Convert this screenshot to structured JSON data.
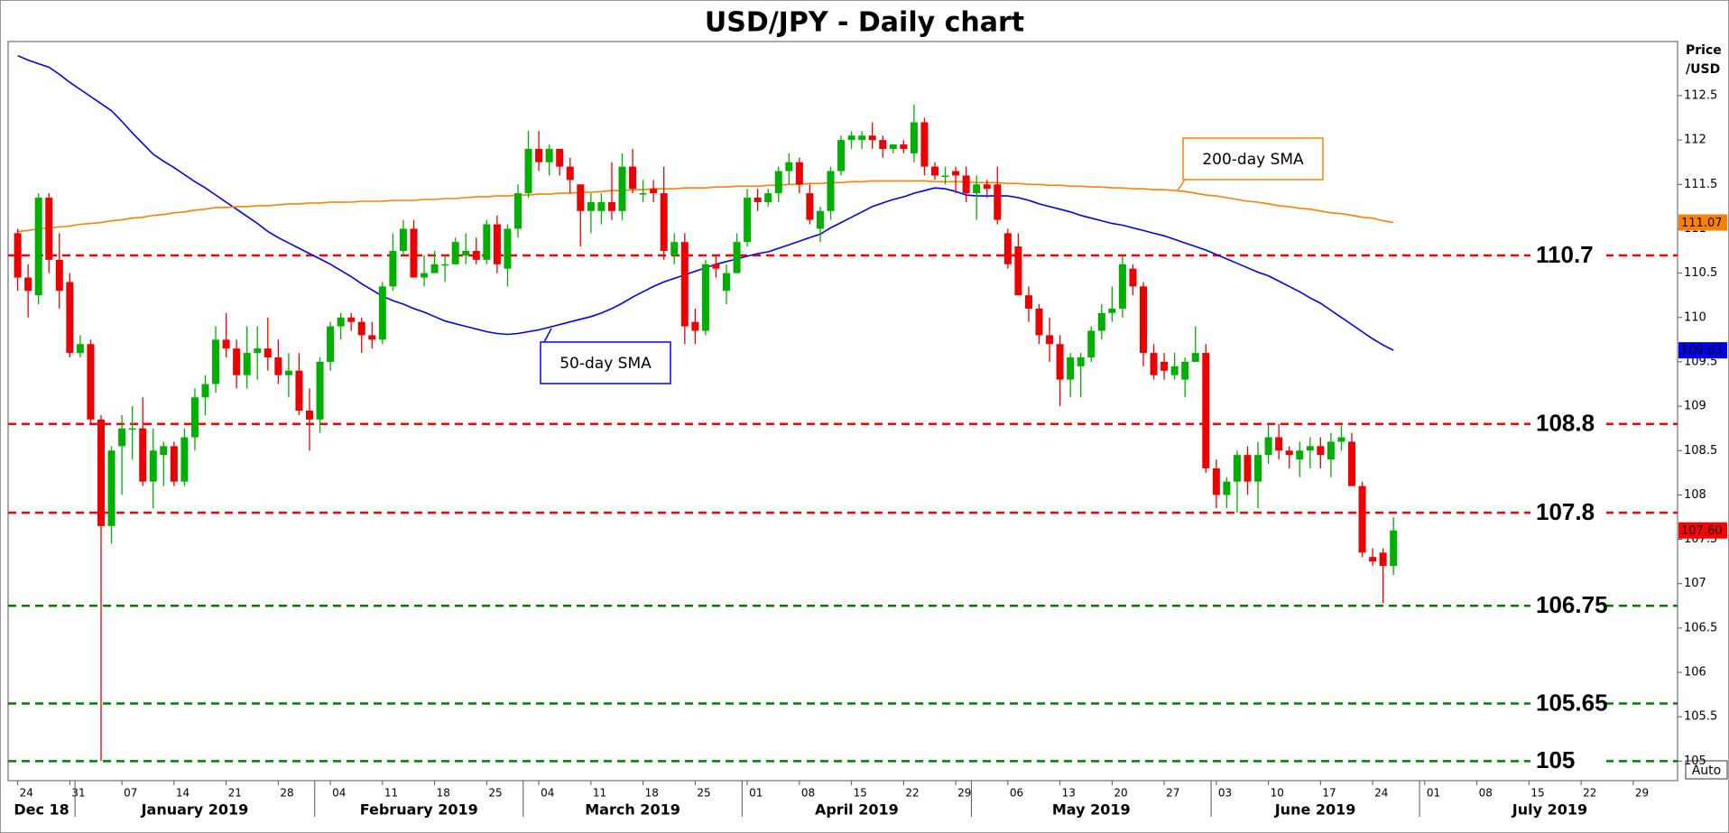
{
  "chart_data": {
    "type": "candlestick",
    "title": "USD/JPY - Daily chart",
    "y_axis_label": [
      "Price",
      "/USD"
    ],
    "button": "Auto",
    "categories": [
      "24",
      null,
      null,
      null,
      null,
      "31",
      null,
      null,
      null,
      null,
      "07",
      null,
      null,
      null,
      null,
      "14",
      null,
      null,
      null,
      null,
      "21",
      null,
      null,
      null,
      null,
      "28",
      null,
      null,
      null,
      null,
      "04",
      null,
      null,
      null,
      null,
      "11",
      null,
      null,
      null,
      null,
      "18",
      null,
      null,
      null,
      null,
      "25",
      null,
      null,
      null,
      null,
      "04",
      null,
      null,
      null,
      null,
      "11",
      null,
      null,
      null,
      null,
      "18",
      null,
      null,
      null,
      null,
      "25",
      null,
      null,
      null,
      null,
      "01",
      null,
      null,
      null,
      null,
      "08",
      null,
      null,
      null,
      null,
      "15",
      null,
      null,
      null,
      null,
      "22",
      null,
      null,
      null,
      null,
      "29",
      null,
      null,
      null,
      null,
      "06",
      null,
      null,
      null,
      null,
      "13",
      null,
      null,
      null,
      null,
      "20",
      null,
      null,
      null,
      null,
      "27",
      null,
      null,
      null,
      null,
      "03",
      null,
      null,
      null,
      null,
      "10",
      null,
      null,
      null,
      null,
      "17",
      null,
      null,
      null,
      null,
      "24",
      null,
      null,
      null,
      null,
      "01",
      null,
      null,
      null,
      null,
      "08",
      null,
      null,
      null,
      null,
      "15",
      null,
      null,
      null,
      null,
      "22",
      null,
      null,
      null,
      null,
      "29",
      null,
      null,
      null,
      null
    ],
    "month_labels": [
      "Dec 18",
      "January 2019",
      "February 2019",
      "March 2019",
      "April 2019",
      "May 2019",
      "June 2019",
      "July 2019"
    ],
    "up_color": "#00b000",
    "down_color": "#ee0000",
    "open": [
      110.95,
      110.45,
      110.25,
      111.35,
      110.65,
      110.4,
      109.6,
      109.7,
      108.85,
      107.65,
      108.55,
      108.75,
      108.75,
      108.15,
      108.45,
      108.55,
      108.15,
      108.65,
      109.1,
      109.25,
      109.75,
      109.65,
      109.35,
      109.6,
      109.65,
      109.55,
      109.35,
      109.4,
      108.95,
      108.85,
      109.5,
      109.9,
      110.0,
      109.95,
      109.8,
      109.75,
      110.35,
      110.75,
      111.0,
      110.45,
      110.5,
      110.6,
      110.6,
      110.7,
      110.75,
      110.65,
      111.05,
      110.55,
      111.0,
      111.4,
      111.9,
      111.75,
      111.9,
      111.7,
      111.5,
      111.2,
      111.2,
      111.3,
      111.2,
      111.7,
      111.4,
      111.45,
      111.4,
      110.7,
      110.85,
      109.95,
      109.85,
      110.6,
      110.3,
      110.5,
      110.85,
      111.35,
      111.3,
      111.4,
      111.65,
      111.75,
      111.4,
      111.0,
      111.2,
      111.65,
      112.0,
      112.0,
      112.05,
      112.0,
      111.9,
      111.95,
      111.85,
      112.2,
      111.7,
      111.6,
      111.65,
      111.6,
      111.4,
      111.5,
      111.5,
      110.95,
      110.8,
      110.25,
      110.1,
      109.8,
      109.7,
      109.3,
      109.45,
      109.55,
      109.85,
      110.05,
      110.1,
      110.55,
      110.35,
      109.6,
      109.5,
      109.35,
      109.3,
      109.5,
      109.6,
      108.3,
      108.0,
      108.15,
      108.45,
      108.15,
      108.45,
      108.65,
      108.5,
      108.4,
      108.5,
      108.55,
      108.4,
      108.6,
      108.6,
      108.1,
      107.3,
      107.35,
      107.2,
      null,
      null,
      null,
      null,
      null,
      null,
      null,
      null,
      null,
      null,
      null,
      null,
      null,
      null,
      null,
      null,
      null,
      null,
      null,
      null,
      null,
      null,
      null,
      null,
      null,
      null,
      null
    ],
    "high": [
      111.0,
      110.6,
      111.4,
      111.4,
      110.95,
      110.5,
      109.8,
      109.75,
      108.9,
      108.55,
      108.9,
      109.0,
      109.1,
      108.75,
      108.6,
      108.6,
      108.75,
      109.2,
      109.35,
      109.9,
      110.05,
      109.75,
      109.9,
      109.9,
      110.0,
      109.75,
      109.6,
      109.6,
      109.2,
      109.55,
      109.95,
      110.05,
      110.05,
      110.0,
      109.95,
      110.4,
      110.95,
      111.1,
      111.1,
      110.7,
      110.75,
      110.7,
      110.9,
      110.95,
      110.9,
      111.1,
      111.15,
      111.05,
      111.5,
      112.1,
      112.1,
      111.95,
      111.9,
      111.8,
      111.5,
      111.4,
      111.4,
      111.75,
      111.85,
      111.9,
      111.55,
      111.55,
      111.7,
      110.95,
      110.95,
      110.1,
      110.65,
      110.7,
      110.6,
      110.95,
      111.45,
      111.45,
      111.45,
      111.7,
      111.85,
      111.8,
      111.5,
      111.25,
      111.7,
      112.05,
      112.1,
      112.1,
      112.2,
      112.05,
      111.95,
      112.0,
      112.4,
      112.25,
      111.75,
      111.7,
      111.7,
      111.7,
      111.6,
      111.55,
      111.7,
      111.0,
      110.95,
      110.35,
      110.15,
      110.0,
      109.8,
      109.6,
      109.6,
      109.9,
      110.15,
      110.35,
      110.7,
      110.6,
      110.4,
      109.7,
      109.6,
      109.6,
      109.55,
      109.9,
      109.7,
      108.4,
      108.2,
      108.5,
      108.55,
      108.6,
      108.8,
      108.8,
      108.55,
      108.6,
      108.65,
      108.65,
      108.7,
      108.8,
      108.7,
      108.15,
      107.4,
      107.4,
      107.75,
      null,
      null,
      null,
      null,
      null,
      null,
      null,
      null,
      null,
      null,
      null,
      null,
      null,
      null,
      null,
      null,
      null,
      null,
      null,
      null,
      null,
      null,
      null,
      null,
      null,
      null,
      null
    ],
    "low": [
      110.3,
      110.0,
      110.15,
      110.5,
      110.1,
      109.55,
      109.55,
      108.8,
      105.0,
      107.45,
      108.0,
      108.4,
      108.1,
      107.85,
      108.1,
      108.1,
      108.1,
      108.5,
      108.9,
      109.15,
      109.55,
      109.2,
      109.2,
      109.3,
      109.4,
      109.25,
      109.1,
      108.9,
      108.5,
      108.7,
      109.4,
      109.75,
      109.85,
      109.6,
      109.65,
      109.7,
      110.3,
      110.7,
      110.45,
      110.35,
      110.5,
      110.4,
      110.6,
      110.6,
      110.6,
      110.6,
      110.5,
      110.35,
      110.9,
      111.35,
      111.65,
      111.6,
      111.6,
      111.4,
      110.8,
      110.95,
      111.05,
      111.1,
      111.1,
      111.4,
      111.3,
      111.3,
      110.65,
      110.6,
      109.7,
      109.7,
      109.8,
      110.45,
      110.15,
      110.5,
      110.8,
      111.2,
      111.25,
      111.3,
      111.5,
      111.4,
      111.05,
      110.85,
      111.1,
      111.6,
      111.9,
      111.9,
      111.9,
      111.8,
      111.85,
      111.85,
      111.75,
      111.6,
      111.55,
      111.5,
      111.4,
      111.3,
      111.1,
      111.35,
      111.05,
      110.55,
      110.25,
      109.95,
      109.7,
      109.5,
      109.0,
      109.1,
      109.1,
      109.5,
      109.75,
      109.95,
      110.0,
      110.25,
      109.45,
      109.3,
      109.3,
      109.3,
      109.1,
      109.5,
      108.25,
      107.85,
      107.85,
      107.8,
      108.0,
      107.85,
      108.35,
      108.4,
      108.3,
      108.2,
      108.3,
      108.3,
      108.2,
      108.5,
      108.1,
      107.3,
      107.2,
      106.78,
      107.1,
      null,
      null,
      null,
      null,
      null,
      null,
      null,
      null,
      null,
      null,
      null,
      null,
      null,
      null,
      null,
      null,
      null,
      null,
      null,
      null,
      null,
      null,
      null,
      null,
      null,
      null,
      null
    ],
    "close": [
      110.45,
      110.3,
      111.35,
      110.65,
      110.3,
      109.6,
      109.7,
      108.85,
      107.65,
      108.5,
      108.75,
      108.75,
      108.15,
      108.5,
      108.55,
      108.15,
      108.65,
      109.1,
      109.25,
      109.75,
      109.65,
      109.35,
      109.6,
      109.65,
      109.55,
      109.35,
      109.4,
      108.95,
      108.85,
      109.5,
      109.9,
      110.0,
      109.95,
      109.8,
      109.75,
      110.35,
      110.75,
      111.0,
      110.45,
      110.5,
      110.6,
      110.6,
      110.85,
      110.75,
      110.65,
      111.05,
      110.6,
      111.0,
      111.4,
      111.9,
      111.75,
      111.9,
      111.7,
      111.55,
      111.2,
      111.3,
      111.3,
      111.2,
      111.7,
      111.45,
      111.4,
      111.4,
      110.75,
      110.85,
      109.9,
      109.85,
      110.6,
      110.55,
      110.5,
      110.85,
      111.35,
      111.3,
      111.4,
      111.65,
      111.75,
      111.5,
      111.1,
      111.2,
      111.65,
      112.0,
      112.05,
      112.05,
      112.0,
      111.9,
      111.95,
      111.9,
      112.2,
      111.7,
      111.6,
      111.6,
      111.6,
      111.4,
      111.5,
      111.45,
      111.1,
      110.6,
      110.25,
      110.1,
      109.8,
      109.7,
      109.3,
      109.55,
      109.55,
      109.85,
      110.05,
      110.1,
      110.6,
      110.35,
      109.6,
      109.35,
      109.4,
      109.45,
      109.5,
      109.6,
      108.3,
      108.0,
      108.15,
      108.45,
      108.15,
      108.45,
      108.65,
      108.5,
      108.45,
      108.5,
      108.55,
      108.45,
      108.6,
      108.65,
      108.1,
      107.35,
      107.25,
      107.2,
      107.6,
      null,
      null,
      null,
      null,
      null,
      null,
      null,
      null,
      null,
      null,
      null,
      null,
      null,
      null,
      null,
      null,
      null,
      null,
      null,
      null,
      null,
      null,
      null,
      null,
      null,
      null,
      null
    ],
    "series": [
      {
        "name": "50-day SMA",
        "color": "#0000ee",
        "values": [
          112.95,
          112.9,
          112.86,
          112.82,
          112.74,
          112.65,
          112.57,
          112.49,
          112.41,
          112.33,
          112.21,
          112.08,
          111.96,
          111.84,
          111.76,
          111.69,
          111.61,
          111.53,
          111.46,
          111.38,
          111.3,
          111.22,
          111.14,
          111.06,
          110.97,
          110.9,
          110.84,
          110.78,
          110.72,
          110.66,
          110.6,
          110.53,
          110.46,
          110.38,
          110.31,
          110.24,
          110.19,
          110.15,
          110.1,
          110.06,
          110.01,
          109.96,
          109.93,
          109.9,
          109.87,
          109.84,
          109.82,
          109.81,
          109.82,
          109.84,
          109.86,
          109.89,
          109.92,
          109.95,
          109.98,
          110.01,
          110.05,
          110.1,
          110.16,
          110.23,
          110.29,
          110.35,
          110.4,
          110.44,
          110.48,
          110.52,
          110.56,
          110.6,
          110.63,
          110.66,
          110.69,
          110.72,
          110.74,
          110.78,
          110.82,
          110.86,
          110.9,
          110.94,
          111.01,
          111.07,
          111.13,
          111.19,
          111.25,
          111.29,
          111.33,
          111.36,
          111.4,
          111.43,
          111.46,
          111.45,
          111.42,
          111.38,
          111.37,
          111.37,
          111.37,
          111.37,
          111.35,
          111.32,
          111.28,
          111.25,
          111.22,
          111.19,
          111.15,
          111.12,
          111.09,
          111.06,
          111.04,
          111.01,
          110.98,
          110.95,
          110.92,
          110.88,
          110.84,
          110.8,
          110.76,
          110.71,
          110.66,
          110.61,
          110.56,
          110.51,
          110.47,
          110.41,
          110.35,
          110.29,
          110.22,
          110.16,
          110.08,
          110.0,
          109.92,
          109.84,
          109.76,
          109.69,
          109.63,
          null,
          null,
          null,
          null,
          null,
          null,
          null,
          null,
          null,
          null,
          null,
          null,
          null,
          null,
          null,
          null,
          null,
          null,
          null,
          null,
          null,
          null,
          null,
          null,
          null,
          null,
          null
        ],
        "box_border": "#0000ff"
      },
      {
        "name": "200-day SMA",
        "color": "#ff8000",
        "values": [
          110.97,
          110.98,
          111.0,
          111.01,
          111.02,
          111.03,
          111.05,
          111.06,
          111.07,
          111.09,
          111.1,
          111.12,
          111.13,
          111.15,
          111.16,
          111.18,
          111.19,
          111.21,
          111.22,
          111.24,
          111.24,
          111.25,
          111.25,
          111.26,
          111.26,
          111.27,
          111.28,
          111.28,
          111.29,
          111.29,
          111.3,
          111.3,
          111.3,
          111.31,
          111.31,
          111.31,
          111.32,
          111.32,
          111.32,
          111.33,
          111.33,
          111.34,
          111.34,
          111.35,
          111.36,
          111.36,
          111.37,
          111.37,
          111.38,
          111.38,
          111.39,
          111.39,
          111.4,
          111.4,
          111.41,
          111.41,
          111.42,
          111.43,
          111.43,
          111.44,
          111.44,
          111.45,
          111.45,
          111.45,
          111.46,
          111.46,
          111.46,
          111.47,
          111.47,
          111.48,
          111.48,
          111.48,
          111.49,
          111.49,
          111.5,
          111.5,
          111.51,
          111.51,
          111.52,
          111.52,
          111.53,
          111.53,
          111.54,
          111.54,
          111.54,
          111.54,
          111.54,
          111.54,
          111.53,
          111.53,
          111.53,
          111.53,
          111.52,
          111.52,
          111.52,
          111.51,
          111.51,
          111.5,
          111.5,
          111.49,
          111.49,
          111.48,
          111.48,
          111.47,
          111.47,
          111.46,
          111.46,
          111.45,
          111.45,
          111.44,
          111.44,
          111.43,
          111.42,
          111.4,
          111.38,
          111.37,
          111.35,
          111.33,
          111.31,
          111.3,
          111.28,
          111.26,
          111.25,
          111.23,
          111.22,
          111.2,
          111.18,
          111.17,
          111.15,
          111.13,
          111.12,
          111.09,
          111.07,
          null,
          null,
          null,
          null,
          null,
          null,
          null,
          null,
          null,
          null,
          null,
          null,
          null,
          null,
          null,
          null,
          null,
          null,
          null,
          null,
          null,
          null,
          null,
          null,
          null,
          null,
          null
        ],
        "box_border": "#ff8000"
      }
    ],
    "levels": [
      {
        "value": 110.7,
        "color": "#ff0000"
      },
      {
        "value": 108.8,
        "color": "#ff0000"
      },
      {
        "value": 107.8,
        "color": "#ff0000"
      },
      {
        "value": 106.75,
        "color": "#008000"
      },
      {
        "value": 105.65,
        "color": "#008000"
      },
      {
        "value": 105,
        "color": "#008000"
      }
    ],
    "price_labels": [
      {
        "value": 111.07,
        "label": "111.07",
        "color": "#ff8000"
      },
      {
        "value": 109.63,
        "label": "109.63",
        "color": "#0000ee"
      },
      {
        "value": 107.6,
        "label": "107.60",
        "color": "#ff0000"
      }
    ],
    "ylim": [
      104.78,
      113.11
    ],
    "yticks": [
      105,
      105.5,
      106,
      106.5,
      107,
      107.5,
      108,
      108.5,
      109,
      109.5,
      110,
      110.5,
      111,
      111.5,
      112,
      112.5
    ]
  }
}
